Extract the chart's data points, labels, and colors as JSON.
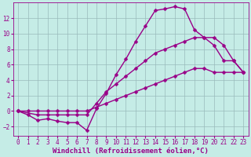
{
  "background_color": "#c5ece6",
  "grid_color": "#99bbbb",
  "line_color": "#990088",
  "marker_color": "#990088",
  "xlabel": "Windchill (Refroidissement éolien,°C)",
  "xlabel_color": "#990088",
  "xlim": [
    -0.5,
    23.5
  ],
  "ylim": [
    -3.2,
    14.0
  ],
  "xticks": [
    0,
    1,
    2,
    3,
    4,
    5,
    6,
    7,
    8,
    9,
    10,
    11,
    12,
    13,
    14,
    15,
    16,
    17,
    18,
    19,
    20,
    21,
    22,
    23
  ],
  "yticks": [
    -2,
    0,
    2,
    4,
    6,
    8,
    10,
    12
  ],
  "line1_x": [
    0,
    1,
    2,
    3,
    4,
    5,
    6,
    7,
    8,
    9,
    10,
    11,
    12,
    13,
    14,
    15,
    16,
    17,
    18,
    19,
    20,
    21,
    22,
    23
  ],
  "line1_y": [
    0,
    -0.5,
    -1.2,
    -1.0,
    -1.3,
    -1.5,
    -1.5,
    -2.5,
    0.3,
    2.3,
    4.7,
    6.7,
    9.0,
    11.0,
    13.0,
    13.2,
    13.5,
    13.2,
    10.5,
    9.5,
    8.5,
    6.5,
    6.5,
    5.0
  ],
  "line2_x": [
    0,
    2,
    3,
    4,
    5,
    6,
    7,
    8,
    9,
    10,
    11,
    12,
    13,
    14,
    15,
    16,
    17,
    18,
    19,
    20,
    21,
    22,
    23
  ],
  "line2_y": [
    0,
    -0.5,
    -0.5,
    -0.5,
    -0.5,
    -0.5,
    -0.5,
    1.0,
    2.5,
    3.5,
    4.5,
    5.5,
    6.5,
    7.5,
    8.0,
    8.5,
    9.0,
    9.5,
    9.5,
    9.5,
    8.5,
    6.5,
    5.0
  ],
  "line3_x": [
    0,
    1,
    2,
    3,
    4,
    5,
    6,
    7,
    8,
    9,
    10,
    11,
    12,
    13,
    14,
    15,
    16,
    17,
    18,
    19,
    20,
    21,
    22,
    23
  ],
  "line3_y": [
    0,
    0,
    0,
    0,
    0,
    0,
    0,
    0,
    0.5,
    1.0,
    1.5,
    2.0,
    2.5,
    3.0,
    3.5,
    4.0,
    4.5,
    5.0,
    5.5,
    5.5,
    5.0,
    5.0,
    5.0,
    5.0
  ],
  "tick_fontsize": 5.5,
  "xlabel_fontsize": 6.5,
  "marker_size": 2.5,
  "line_width": 1.0
}
